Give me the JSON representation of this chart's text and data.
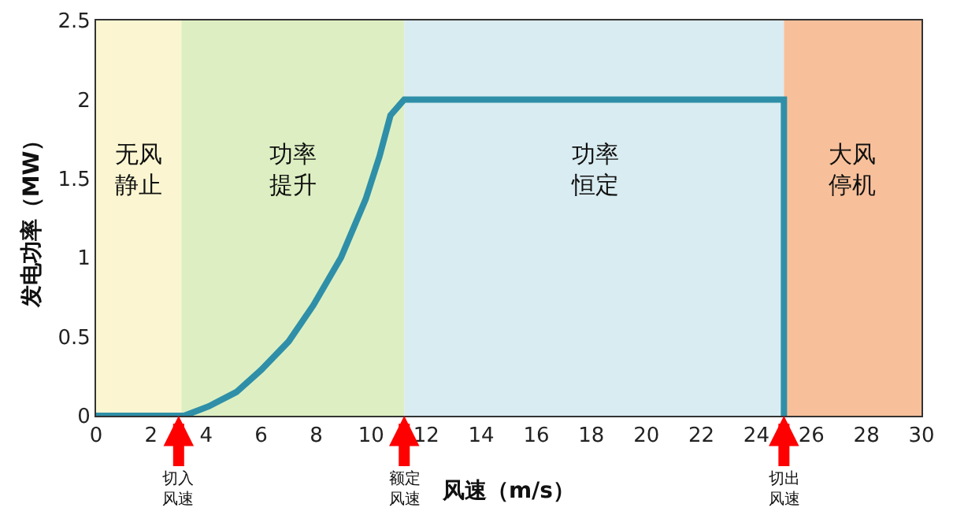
{
  "chart_data": {
    "type": "line",
    "xlabel": "风速（m/s）",
    "ylabel": "发电功率（MW）",
    "x": [
      0,
      3,
      3.2,
      4.1,
      5.1,
      6,
      7,
      7.9,
      8.9,
      9.8,
      10.3,
      10.7,
      11.2,
      25,
      25
    ],
    "series": [
      {
        "color": "#2f8fa8",
        "values": [
          0,
          0,
          0,
          0.06,
          0.15,
          0.29,
          0.47,
          0.7,
          1,
          1.37,
          1.64,
          1.9,
          2,
          2,
          0
        ]
      }
    ],
    "xlim": [
      0,
      30
    ],
    "xticks": [
      0,
      2,
      4,
      6,
      8,
      10,
      12,
      14,
      16,
      18,
      20,
      22,
      24,
      26,
      28,
      30
    ],
    "ylim": [
      0,
      2.5
    ],
    "yticks": [
      0,
      0.5,
      1,
      1.5,
      2,
      2.5
    ],
    "grid": false,
    "marker": "none",
    "line_style": "solid",
    "bands": [
      {
        "axis": "x",
        "from": 0,
        "to": 3.1,
        "label": "无风静止",
        "color": "#fbf5cc"
      },
      {
        "axis": "x",
        "from": 3.1,
        "to": 11.2,
        "label": "功率提升",
        "color": "#d9edbb"
      },
      {
        "axis": "x",
        "from": 11.2,
        "to": 25,
        "label": "功率恒定",
        "color": "#d5eaf0"
      },
      {
        "axis": "x",
        "from": 25,
        "to": 30,
        "label": "大风停机",
        "color": "#f7b98f"
      }
    ],
    "annotations": [
      {
        "text": "切入风速",
        "x": 3,
        "y": 0
      },
      {
        "text": "额定风速",
        "x": 11.2,
        "y": 0
      },
      {
        "text": "切出风速",
        "x": 25,
        "y": 0
      }
    ]
  }
}
